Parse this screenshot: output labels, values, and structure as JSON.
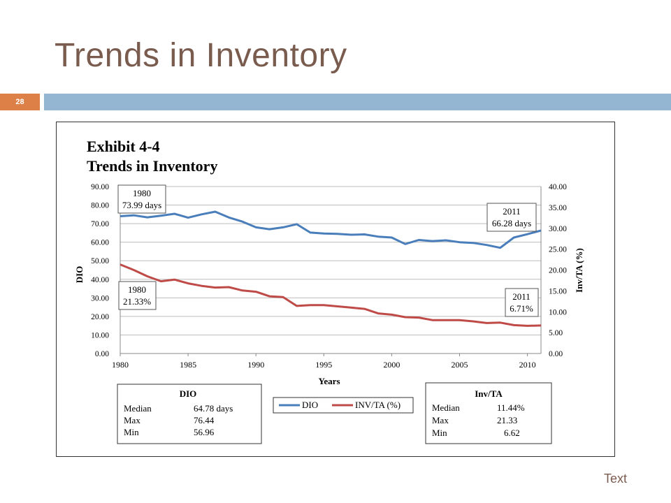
{
  "slide": {
    "title": "Trends in Inventory",
    "number": "28",
    "footer": "Text"
  },
  "chart_data": {
    "type": "line",
    "title": "Exhibit 4-4",
    "subtitle": "Trends in Inventory",
    "xlabel": "Years",
    "ylabel": "DIO",
    "y2label": "Inv/TA (%)",
    "xlim": [
      1980,
      2011
    ],
    "ylim": [
      0,
      90
    ],
    "y2lim": [
      0,
      40
    ],
    "x_ticks": [
      "1980",
      "1985",
      "1990",
      "1995",
      "2000",
      "2005",
      "2010"
    ],
    "y_ticks": [
      "90.00",
      "80.00",
      "70.00",
      "60.00",
      "50.00",
      "40.00",
      "30.00",
      "20.00",
      "10.00",
      "0.00"
    ],
    "y2_ticks": [
      "40.00",
      "35.00",
      "30.00",
      "25.00",
      "20.00",
      "15.00",
      "10.00",
      "5.00",
      "0.00"
    ],
    "grid": true,
    "series": [
      {
        "name": "DIO",
        "axis": "left",
        "color": "#4a7ebb",
        "x": [
          1980,
          1981,
          1982,
          1983,
          1984,
          1985,
          1986,
          1987,
          1988,
          1989,
          1990,
          1991,
          1992,
          1993,
          1994,
          1995,
          1996,
          1997,
          1998,
          1999,
          2000,
          2001,
          2002,
          2003,
          2004,
          2005,
          2006,
          2007,
          2008,
          2009,
          2010,
          2011
        ],
        "y": [
          73.99,
          74.5,
          73.4,
          74.3,
          75.3,
          73.2,
          75.0,
          76.44,
          73.3,
          71.1,
          68.0,
          67.0,
          68.0,
          69.7,
          65.2,
          64.7,
          64.5,
          64.0,
          64.2,
          63.0,
          62.5,
          59.0,
          61.2,
          60.6,
          61.0,
          60.0,
          59.6,
          58.5,
          56.96,
          62.5,
          64.3,
          66.28
        ]
      },
      {
        "name": "INV/TA (%)",
        "axis": "right",
        "color": "#be4b48",
        "x": [
          1980,
          1981,
          1982,
          1983,
          1984,
          1985,
          1986,
          1987,
          1988,
          1989,
          1990,
          1991,
          1992,
          1993,
          1994,
          1995,
          1996,
          1997,
          1998,
          1999,
          2000,
          2001,
          2002,
          2003,
          2004,
          2005,
          2006,
          2007,
          2008,
          2009,
          2010,
          2011
        ],
        "y": [
          21.33,
          20.0,
          18.5,
          17.3,
          17.7,
          16.8,
          16.2,
          15.8,
          15.9,
          15.1,
          14.8,
          13.7,
          13.5,
          11.4,
          11.6,
          11.6,
          11.3,
          11.0,
          10.7,
          9.6,
          9.3,
          8.7,
          8.6,
          8.0,
          8.0,
          8.0,
          7.7,
          7.3,
          7.4,
          6.8,
          6.62,
          6.71
        ]
      }
    ],
    "annotations": {
      "dio_start": {
        "line1": "1980",
        "line2": "73.99 days"
      },
      "dio_end": {
        "line1": "2011",
        "line2": "66.28 days"
      },
      "inv_start": {
        "line1": "1980",
        "line2": "21.33%"
      },
      "inv_end": {
        "line1": "2011",
        "line2": "6.71%"
      }
    },
    "stats_dio": {
      "title": "DIO",
      "rows": [
        {
          "label": "Median",
          "value": "64.78 days"
        },
        {
          "label": "Max",
          "value": "76.44"
        },
        {
          "label": "Min",
          "value": "56.96"
        }
      ]
    },
    "stats_inv": {
      "title": "Inv/TA",
      "rows": [
        {
          "label": "Median",
          "value": "11.44%"
        },
        {
          "label": "Max",
          "value": "21.33"
        },
        {
          "label": "Min",
          "value": "6.62"
        }
      ]
    },
    "legend": {
      "position": "bottom",
      "items": [
        "DIO",
        "INV/TA (%)"
      ]
    }
  }
}
